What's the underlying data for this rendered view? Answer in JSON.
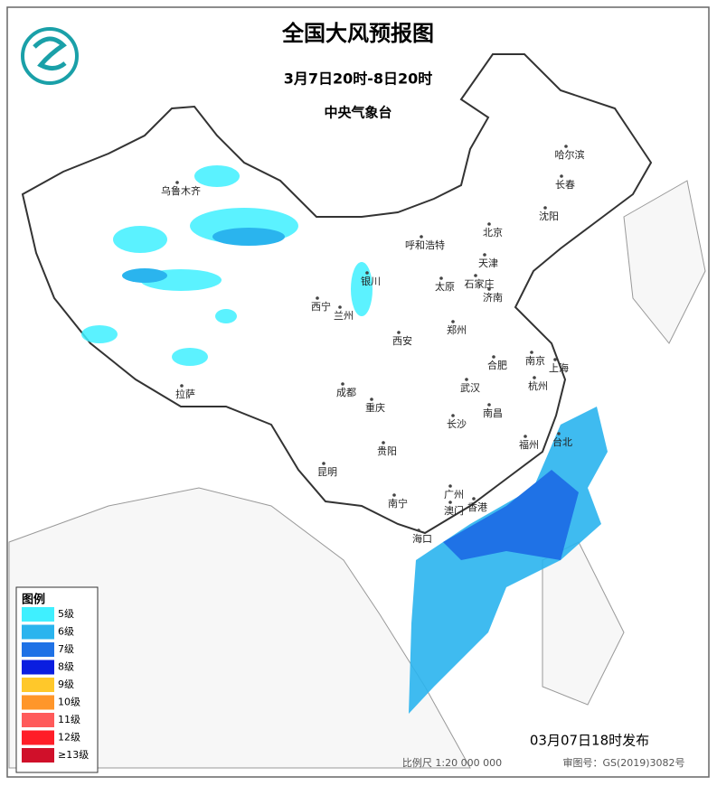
{
  "header": {
    "title": "全国大风预报图",
    "date_range": "3月7日20时-8日20时",
    "issuer": "中央气象台"
  },
  "legend": {
    "title": "图例",
    "items": [
      {
        "label": "5级",
        "color": "#3ff0ff"
      },
      {
        "label": "6级",
        "color": "#2ab4ee"
      },
      {
        "label": "7级",
        "color": "#1f72e6"
      },
      {
        "label": "8级",
        "color": "#0a1ee0"
      },
      {
        "label": "9级",
        "color": "#ffc82a"
      },
      {
        "label": "10级",
        "color": "#ff962a"
      },
      {
        "label": "11级",
        "color": "#ff5a5a"
      },
      {
        "label": "12级",
        "color": "#ff1e28"
      },
      {
        "label": "≥13级",
        "color": "#d0102a"
      }
    ]
  },
  "cities": [
    "乌鲁木齐",
    "哈尔滨",
    "长春",
    "沈阳",
    "北京",
    "呼和浩特",
    "天津",
    "银川",
    "太原",
    "石家庄",
    "济南",
    "西宁",
    "兰州",
    "郑州",
    "西安",
    "合肥",
    "南京",
    "上海",
    "拉萨",
    "成都",
    "武汉",
    "杭州",
    "重庆",
    "长沙",
    "南昌",
    "福州",
    "台北",
    "贵阳",
    "昆明",
    "广州",
    "香港",
    "澳门",
    "南宁",
    "海口"
  ],
  "footer": {
    "release": "03月07日18时发布",
    "scale": "比例尺 1:20 000 000",
    "approval": "审图号：GS(2019)3082号"
  }
}
